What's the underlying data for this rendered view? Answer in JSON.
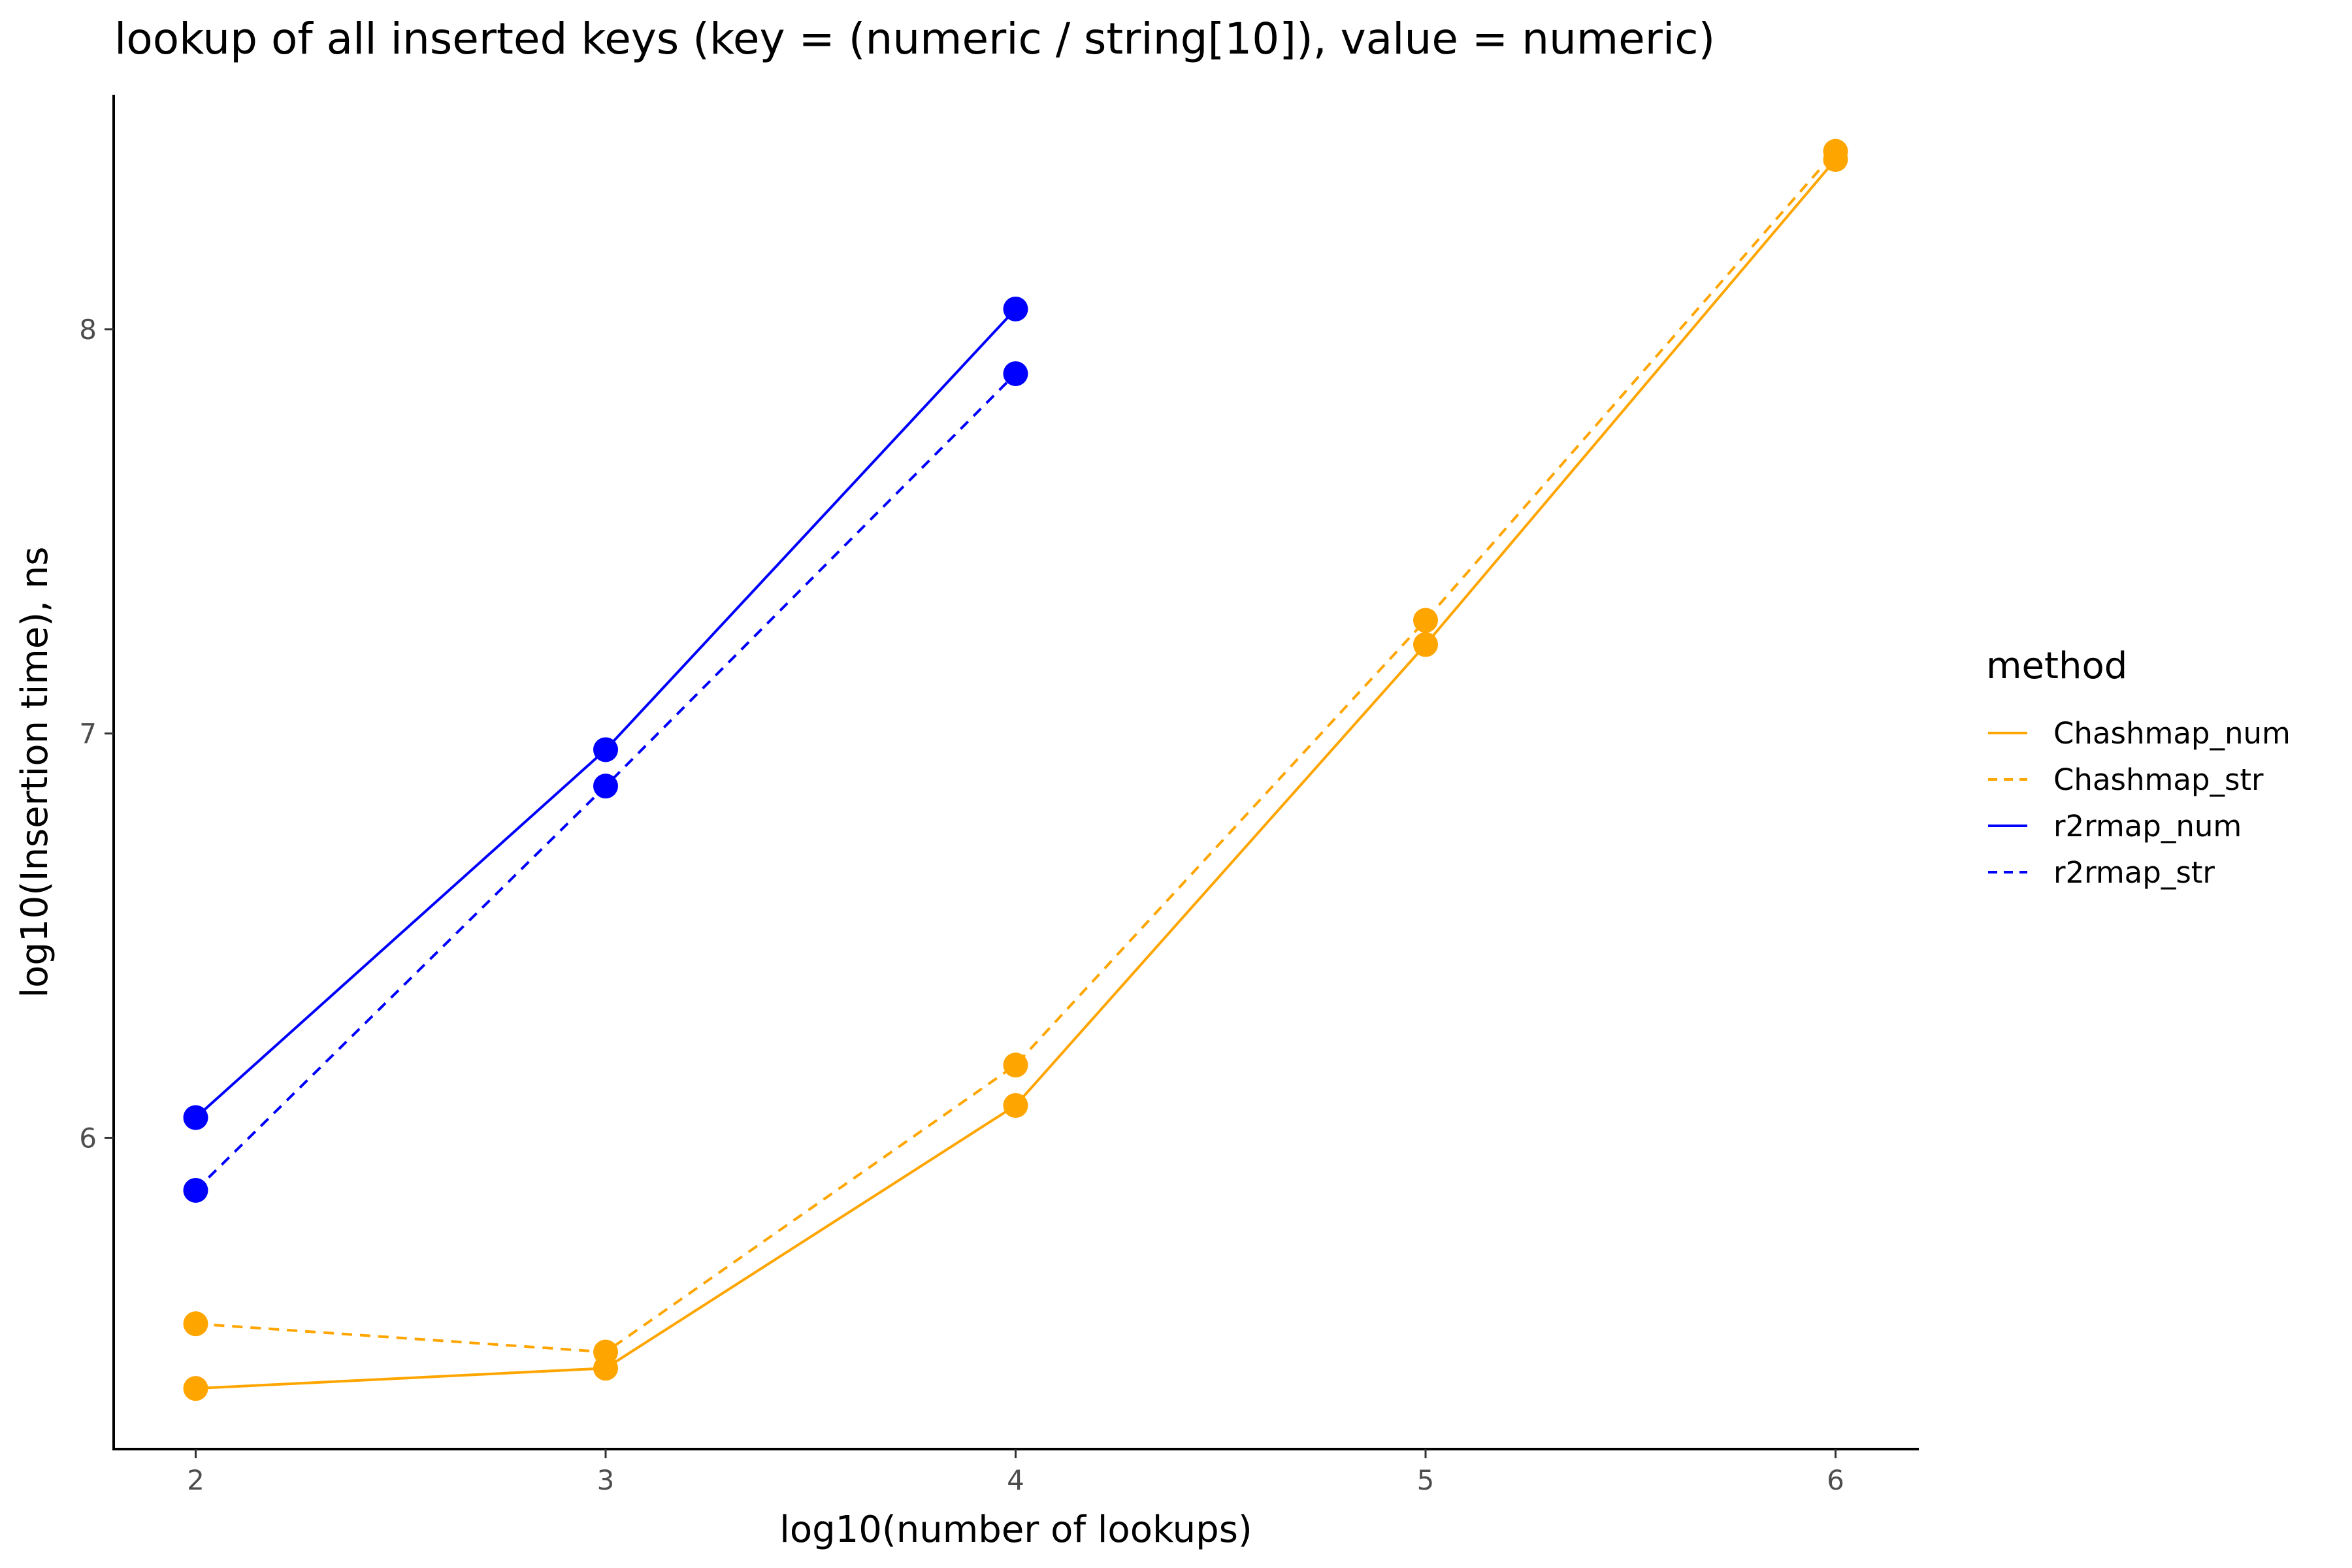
{
  "chart_data": {
    "type": "line",
    "title": "lookup of all inserted keys (key = (numeric / string[10]), value = numeric)",
    "xlabel": "log10(number of lookups)",
    "ylabel": "log10(Insertion time), ns",
    "xlim": [
      1.8,
      6.2
    ],
    "ylim": [
      5.23,
      8.58
    ],
    "x_ticks": [
      2,
      3,
      4,
      5,
      6
    ],
    "y_ticks": [
      6,
      7,
      8
    ],
    "legend": {
      "title": "method",
      "position": "right"
    },
    "series": [
      {
        "name": "Chashmap_num",
        "color": "#FFA500",
        "dash": "solid",
        "x": [
          2,
          3,
          4,
          5,
          6
        ],
        "y": [
          5.38,
          5.43,
          6.08,
          7.22,
          8.42
        ]
      },
      {
        "name": "Chashmap_str",
        "color": "#FFA500",
        "dash": "dashed",
        "x": [
          2,
          3,
          4,
          5,
          6
        ],
        "y": [
          5.54,
          5.47,
          6.18,
          7.28,
          8.44
        ]
      },
      {
        "name": "r2rmap_num",
        "color": "#0000FF",
        "dash": "solid",
        "x": [
          2,
          3,
          4
        ],
        "y": [
          6.05,
          6.96,
          8.05
        ]
      },
      {
        "name": "r2rmap_str",
        "color": "#0000FF",
        "dash": "dashed",
        "x": [
          2,
          3,
          4
        ],
        "y": [
          5.87,
          6.87,
          7.89
        ]
      }
    ]
  }
}
